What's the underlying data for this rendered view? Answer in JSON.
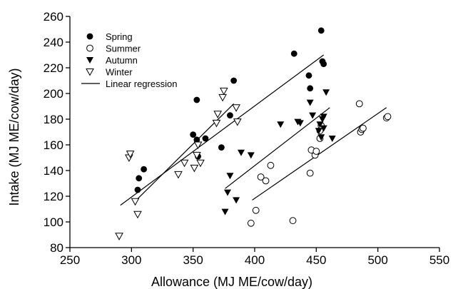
{
  "chart_data": {
    "type": "scatter",
    "title": "",
    "xlabel": "Allowance (MJ ME/cow/day)",
    "ylabel": "Intake (MJ ME/cow/day)",
    "xlim": [
      250,
      550
    ],
    "ylim": [
      80,
      260
    ],
    "xticks": [
      250,
      300,
      350,
      400,
      450,
      500,
      550
    ],
    "yticks": [
      80,
      100,
      120,
      140,
      160,
      180,
      200,
      220,
      240,
      260
    ],
    "grid": false,
    "legend_position": "top-left",
    "series": [
      {
        "name": "Spring",
        "marker": "circle-filled",
        "points": [
          [
            305,
            125
          ],
          [
            306,
            134
          ],
          [
            310,
            141
          ],
          [
            350,
            168
          ],
          [
            353,
            164
          ],
          [
            353,
            195
          ],
          [
            354,
            151
          ],
          [
            360,
            165
          ],
          [
            373,
            158
          ],
          [
            380,
            183
          ],
          [
            383,
            210
          ],
          [
            432,
            231
          ],
          [
            444,
            214
          ],
          [
            445,
            204
          ],
          [
            454,
            249
          ],
          [
            455,
            225
          ],
          [
            456,
            223
          ]
        ]
      },
      {
        "name": "Summer",
        "marker": "circle-open",
        "points": [
          [
            397,
            99
          ],
          [
            401,
            109
          ],
          [
            405,
            135
          ],
          [
            409,
            132
          ],
          [
            413,
            144
          ],
          [
            431,
            101
          ],
          [
            445,
            138
          ],
          [
            446,
            156
          ],
          [
            449,
            152
          ],
          [
            450,
            155
          ],
          [
            453,
            171
          ],
          [
            453,
            165
          ],
          [
            454,
            175
          ],
          [
            485,
            192
          ],
          [
            486,
            170
          ],
          [
            487,
            172
          ],
          [
            488,
            173
          ],
          [
            507,
            181
          ],
          [
            508,
            182
          ]
        ]
      },
      {
        "name": "Autumn",
        "marker": "triangle-down-filled",
        "points": [
          [
            376,
            108
          ],
          [
            378,
            123
          ],
          [
            380,
            136
          ],
          [
            385,
            117
          ],
          [
            389,
            154
          ],
          [
            397,
            152
          ],
          [
            421,
            176
          ],
          [
            435,
            178
          ],
          [
            437,
            177
          ],
          [
            445,
            193
          ],
          [
            447,
            183
          ],
          [
            452,
            171
          ],
          [
            453,
            176
          ],
          [
            454,
            166
          ],
          [
            455,
            180
          ],
          [
            456,
            182
          ],
          [
            458,
            201
          ],
          [
            463,
            165
          ],
          [
            456,
            173
          ]
        ]
      },
      {
        "name": "Winter",
        "marker": "triangle-down-open",
        "points": [
          [
            290,
            89
          ],
          [
            298,
            150
          ],
          [
            299,
            153
          ],
          [
            303,
            116
          ],
          [
            305,
            106
          ],
          [
            338,
            137
          ],
          [
            343,
            146
          ],
          [
            351,
            142
          ],
          [
            353,
            152
          ],
          [
            354,
            160
          ],
          [
            356,
            146
          ],
          [
            369,
            177
          ],
          [
            370,
            184
          ],
          [
            374,
            197
          ],
          [
            375,
            202
          ],
          [
            385,
            189
          ],
          [
            386,
            178
          ]
        ]
      }
    ],
    "regression_legend": "Linear regression",
    "regression_lines": [
      {
        "x": [
          291,
          456
        ],
        "y": [
          113,
          230
        ]
      },
      {
        "x": [
          305,
          383
        ],
        "y": [
          118,
          192
        ]
      },
      {
        "x": [
          376,
          461
        ],
        "y": [
          126,
          189
        ]
      },
      {
        "x": [
          398,
          507
        ],
        "y": [
          117,
          189
        ]
      }
    ]
  }
}
